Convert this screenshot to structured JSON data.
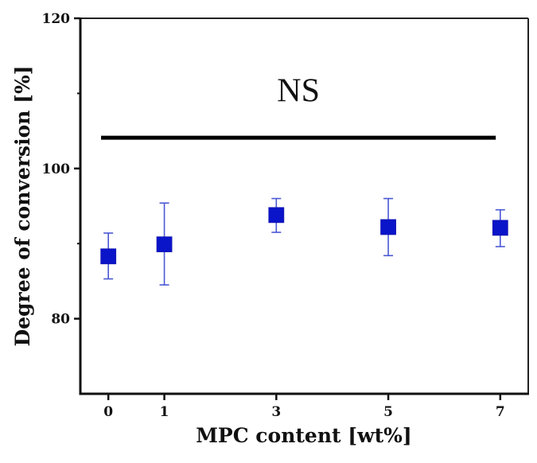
{
  "chart_data": {
    "type": "scatter",
    "title": "",
    "xlabel": "MPC content [wt%]",
    "ylabel": "Degree of conversion [%]",
    "xlim": [
      -0.5,
      7.5
    ],
    "ylim": [
      70,
      120
    ],
    "x_ticks": [
      0,
      1,
      3,
      5,
      7
    ],
    "x_tick_labels": [
      "0",
      "1",
      "3",
      "5",
      "7"
    ],
    "y_ticks": [
      80,
      100,
      120
    ],
    "y_tick_labels": [
      "80",
      "100",
      "120"
    ],
    "y_minor_ticks": [
      90,
      110
    ],
    "grid": false,
    "legend": null,
    "series": [
      {
        "name": "Degree of conversion",
        "marker": "square",
        "color": "#0a14c8",
        "errorbar_color": "#4a58d4",
        "x": [
          0,
          1,
          3,
          5,
          7
        ],
        "y": [
          88.3,
          89.9,
          93.8,
          92.2,
          92.1
        ],
        "error_upper": [
          91.4,
          95.4,
          96.0,
          96.0,
          94.5
        ],
        "error_lower": [
          85.3,
          84.5,
          91.5,
          88.4,
          89.6
        ]
      }
    ],
    "annotations": [
      {
        "type": "significance_bar",
        "text": "NS",
        "x_start": -0.13,
        "x_end": 6.92,
        "y": 104.1,
        "text_y": 110.5
      }
    ]
  }
}
